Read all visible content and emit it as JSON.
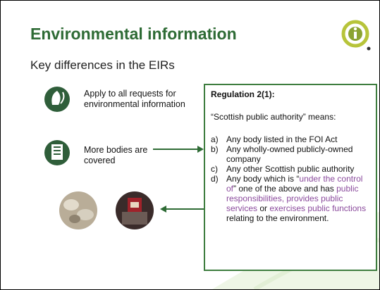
{
  "title": "Environmental information",
  "subtitle": "Key differences in the EIRs",
  "points": [
    "Apply to all requests for environmental information",
    "More bodies are covered"
  ],
  "box": {
    "heading": "Regulation 2(1):",
    "intro": "“Scottish public authority” means:",
    "items": [
      {
        "label": "a)",
        "segments": [
          {
            "text": "Any body listed in the FOI Act"
          }
        ]
      },
      {
        "label": "b)",
        "segments": [
          {
            "text": "Any wholly-owned publicly-owned company"
          }
        ]
      },
      {
        "label": "c)",
        "segments": [
          {
            "text": "Any other Scottish public authority"
          }
        ]
      },
      {
        "label": "d)",
        "segments": [
          {
            "text": "Any body which is “"
          },
          {
            "text": "under the control of",
            "color": "#8a4a9c"
          },
          {
            "text": "” one of the above and has "
          },
          {
            "text": "public responsibilities, provides public services",
            "color": "#8a4a9c"
          },
          {
            "text": " or "
          },
          {
            "text": "exercises public functions",
            "color": "#8a4a9c"
          },
          {
            "text": " relating to the environment."
          }
        ]
      }
    ]
  }
}
